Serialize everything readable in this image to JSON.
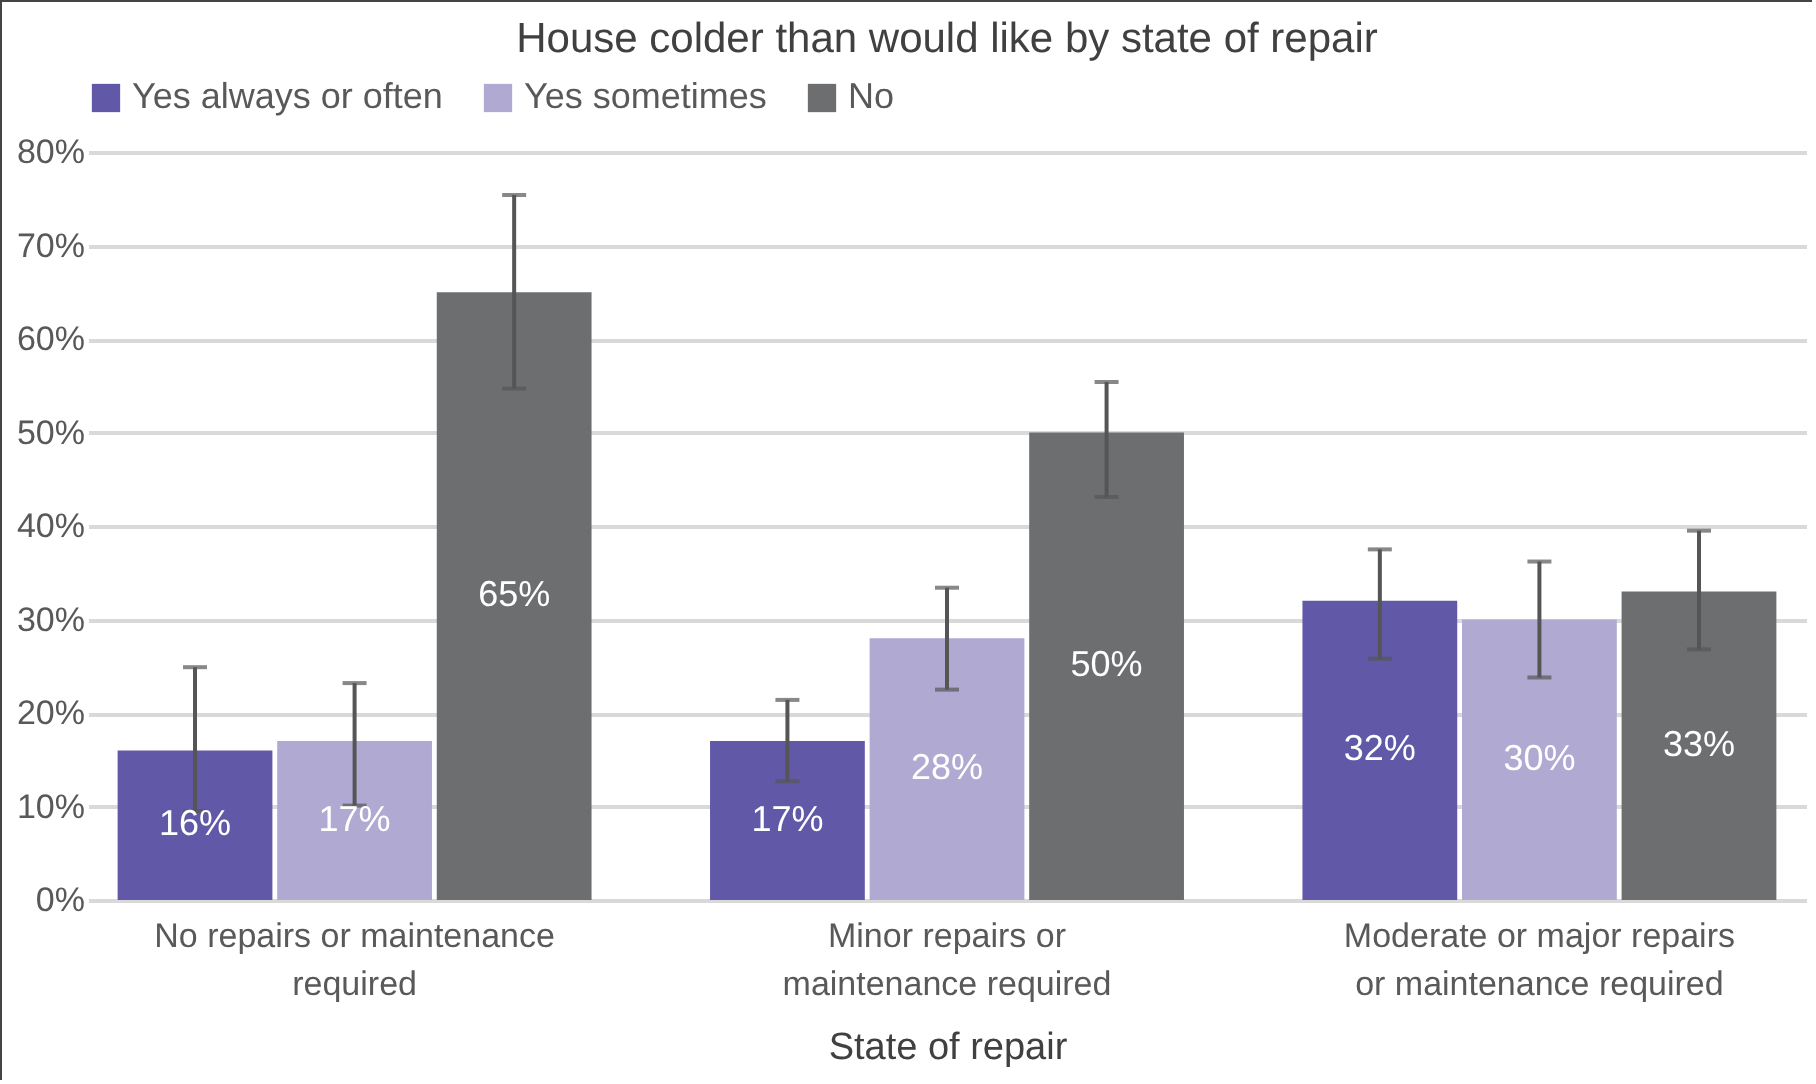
{
  "chart_data": {
    "type": "bar",
    "title": "House colder than would like by state of repair",
    "xlabel": "State of repair",
    "categories": [
      "No repairs or maintenance required",
      "Minor repairs or maintenance required",
      "Moderate or major repairs or maintenance required"
    ],
    "series": [
      {
        "name": "Yes always or often",
        "color": "#6159a8",
        "values": [
          16,
          17,
          32
        ],
        "value_labels": [
          "16%",
          "17%",
          "32%"
        ],
        "errors": [
          [
            9.5,
            24.9
          ],
          [
            12.7,
            21.4
          ],
          [
            25.8,
            37.5
          ]
        ]
      },
      {
        "name": "Yes sometimes",
        "color": "#b0aad3",
        "values": [
          17,
          28,
          30
        ],
        "value_labels": [
          "17%",
          "28%",
          "30%"
        ],
        "errors": [
          [
            10.1,
            23.2
          ],
          [
            22.5,
            33.4
          ],
          [
            23.8,
            36.2
          ]
        ]
      },
      {
        "name": "No",
        "color": "#6d6e70",
        "values": [
          65,
          50,
          33
        ],
        "value_labels": [
          "65%",
          "50%",
          "33%"
        ],
        "errors": [
          [
            54.7,
            75.4
          ],
          [
            43.1,
            55.4
          ],
          [
            26.8,
            39.5
          ]
        ]
      }
    ],
    "ylim": [
      0,
      80
    ],
    "yticks": [
      {
        "value": 0,
        "label": "0%"
      },
      {
        "value": 10,
        "label": "10%"
      },
      {
        "value": 20,
        "label": "20%"
      },
      {
        "value": 30,
        "label": "30%"
      },
      {
        "value": 40,
        "label": "40%"
      },
      {
        "value": 50,
        "label": "50%"
      },
      {
        "value": 60,
        "label": "60%"
      },
      {
        "value": 70,
        "label": "70%"
      },
      {
        "value": 80,
        "label": "80%"
      }
    ],
    "grid": "y",
    "legend": "top"
  }
}
